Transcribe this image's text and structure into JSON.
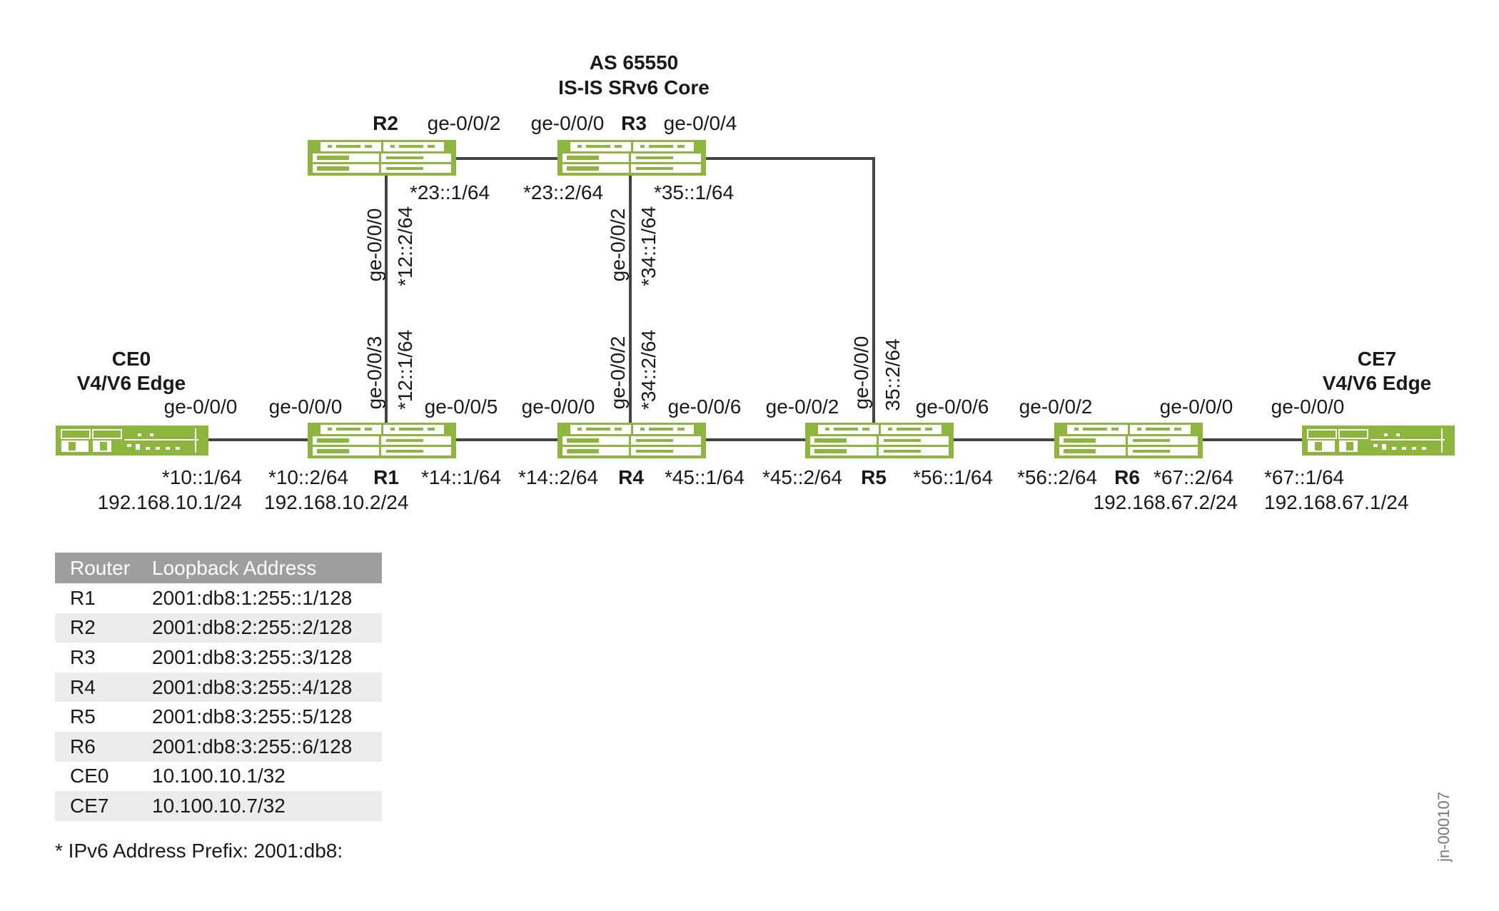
{
  "core": {
    "as": "AS 65550",
    "desc": "IS-IS SRv6 Core"
  },
  "colors": {
    "device": "#8cb63c",
    "link": "#444444",
    "table_header": "#9e9e9e",
    "table_stripe": "#ececec"
  },
  "devices": {
    "r1": "R1",
    "r2": "R2",
    "r3": "R3",
    "r4": "R4",
    "r5": "R5",
    "r6": "R6",
    "ce0": "CE0",
    "ce7": "CE7",
    "edge_role": "V4/V6 Edge"
  },
  "ifaces": {
    "r2_ge002": "ge-0/0/2",
    "r3_ge000": "ge-0/0/0",
    "r3_ge004": "ge-0/0/4",
    "r2_ip23": "*23::1/64",
    "r3_ip23": "*23::2/64",
    "r3_ip35": "*35::1/64",
    "r2_ge000": "ge-0/0/0",
    "r2_ip12": "*12::2/64",
    "r1_ge003": "ge-0/0/3",
    "r1_ip12": "*12::1/64",
    "r3_ge002": "ge-0/0/2",
    "r3_ip34": "*34::1/64",
    "r4_ge002": "ge-0/0/2",
    "r4_ip34": "*34::2/64",
    "r5_ge000": "ge-0/0/0",
    "r5_ip35": "35::2/64",
    "ce0_ge000": "ge-0/0/0",
    "r1_ge000": "ge-0/0/0",
    "r1_ge005": "ge-0/0/5",
    "r4_ge000": "ge-0/0/0",
    "r4_ge006": "ge-0/0/6",
    "r5_ge002": "ge-0/0/2",
    "r5_ge006": "ge-0/0/6",
    "r6_ge002": "ge-0/0/2",
    "r6_ge000": "ge-0/0/0",
    "ce7_ge000": "ge-0/0/0",
    "ce0_ip10": "*10::1/64",
    "r1_ip10": "*10::2/64",
    "r1_ip14": "*14::1/64",
    "r4_ip14": "*14::2/64",
    "r4_ip45": "*45::1/64",
    "r5_ip45": "*45::2/64",
    "r5_ip56": "*56::1/64",
    "r6_ip56": "*56::2/64",
    "r6_ip67": "*67::2/64",
    "ce7_ip67": "*67::1/64",
    "ce0_v4": "192.168.10.1/24",
    "r1_v4": "192.168.10.2/24",
    "r6_v4": "192.168.67.2/24",
    "ce7_v4": "192.168.67.1/24"
  },
  "table": {
    "headers": [
      "Router",
      "Loopback Address"
    ],
    "rows": [
      [
        "R1",
        "2001:db8:1:255::1/128"
      ],
      [
        "R2",
        "2001:db8:2:255::2/128"
      ],
      [
        "R3",
        "2001:db8:3:255::3/128"
      ],
      [
        "R4",
        "2001:db8:3:255::4/128"
      ],
      [
        "R5",
        "2001:db8:3:255::5/128"
      ],
      [
        "R6",
        "2001:db8:3:255::6/128"
      ],
      [
        "CE0",
        "10.100.10.1/32"
      ],
      [
        "CE7",
        "10.100.10.7/32"
      ]
    ]
  },
  "footnote": "* IPv6 Address Prefix: 2001:db8:",
  "figure_id": "jn-000107"
}
